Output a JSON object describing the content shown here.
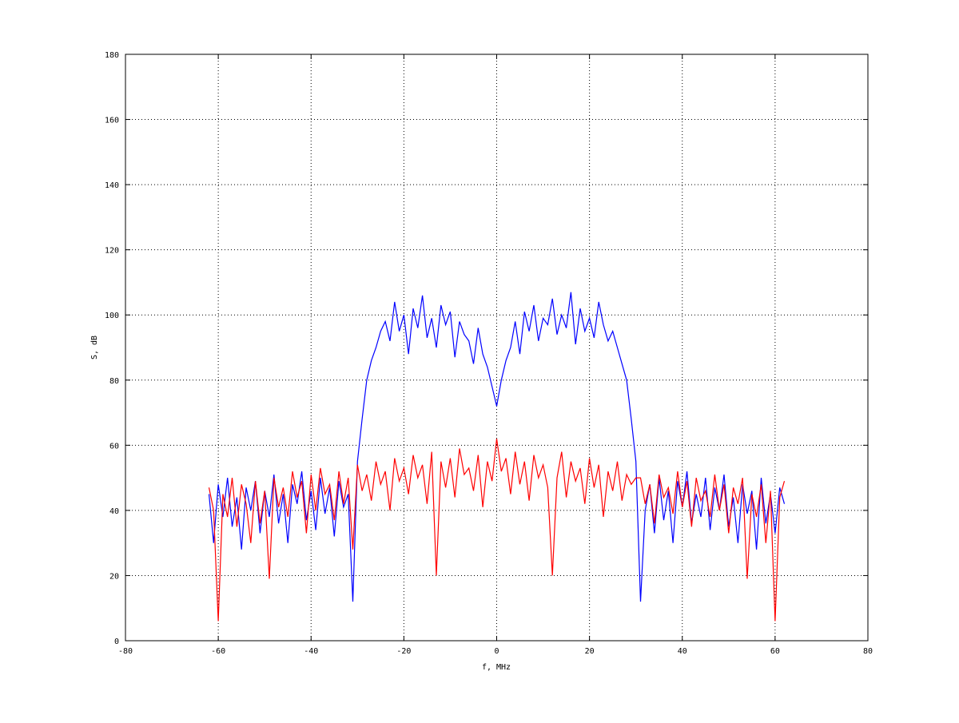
{
  "chart_data": {
    "type": "line",
    "title": "",
    "xlabel": "f, MHz",
    "ylabel": "S, dB",
    "xlim": [
      -80,
      80
    ],
    "ylim": [
      0,
      180
    ],
    "xticks": [
      -80,
      -60,
      -40,
      -20,
      0,
      20,
      40,
      60,
      80
    ],
    "yticks": [
      0,
      20,
      40,
      60,
      80,
      100,
      120,
      140,
      160,
      180
    ],
    "grid": true,
    "legend": "none",
    "x": [
      -62,
      -61,
      -60,
      -59,
      -58,
      -57,
      -56,
      -55,
      -54,
      -53,
      -52,
      -51,
      -50,
      -49,
      -48,
      -47,
      -46,
      -45,
      -44,
      -43,
      -42,
      -41,
      -40,
      -39,
      -38,
      -37,
      -36,
      -35,
      -34,
      -33,
      -32,
      -31,
      -30,
      -29,
      -28,
      -27,
      -26,
      -25,
      -24,
      -23,
      -22,
      -21,
      -20,
      -19,
      -18,
      -17,
      -16,
      -15,
      -14,
      -13,
      -12,
      -11,
      -10,
      -9,
      -8,
      -7,
      -6,
      -5,
      -4,
      -3,
      -2,
      -1,
      0,
      1,
      2,
      3,
      4,
      5,
      6,
      7,
      8,
      9,
      10,
      11,
      12,
      13,
      14,
      15,
      16,
      17,
      18,
      19,
      20,
      21,
      22,
      23,
      24,
      25,
      26,
      27,
      28,
      29,
      30,
      31,
      32,
      33,
      34,
      35,
      36,
      37,
      38,
      39,
      40,
      41,
      42,
      43,
      44,
      45,
      46,
      47,
      48,
      49,
      50,
      51,
      52,
      53,
      54,
      55,
      56,
      57,
      58,
      59,
      60,
      61,
      62
    ],
    "series": [
      {
        "color": "#0000ff",
        "values": [
          45,
          30,
          48,
          38,
          50,
          35,
          44,
          28,
          47,
          40,
          49,
          33,
          46,
          38,
          51,
          36,
          45,
          30,
          48,
          42,
          52,
          37,
          46,
          34,
          50,
          39,
          47,
          32,
          49,
          41,
          45,
          12,
          55,
          68,
          80,
          86,
          90,
          95,
          98,
          92,
          104,
          95,
          100,
          88,
          102,
          96,
          106,
          93,
          99,
          90,
          103,
          97,
          101,
          87,
          98,
          94,
          92,
          85,
          96,
          88,
          84,
          78,
          72,
          80,
          86,
          90,
          98,
          88,
          101,
          95,
          103,
          92,
          99,
          97,
          105,
          94,
          100,
          96,
          107,
          91,
          102,
          95,
          99,
          93,
          104,
          97,
          92,
          95,
          90,
          85,
          80,
          68,
          55,
          12,
          40,
          48,
          33,
          50,
          37,
          46,
          30,
          49,
          41,
          52,
          36,
          45,
          38,
          50,
          34,
          47,
          40,
          51,
          35,
          44,
          30,
          48,
          39,
          46,
          28,
          50,
          36,
          45,
          33,
          47,
          42
        ]
      },
      {
        "color": "#ff0000",
        "values": [
          47,
          40,
          6,
          45,
          38,
          50,
          35,
          48,
          42,
          30,
          49,
          36,
          46,
          19,
          50,
          41,
          47,
          38,
          52,
          44,
          49,
          33,
          51,
          40,
          53,
          45,
          48,
          37,
          52,
          42,
          50,
          28,
          54,
          46,
          51,
          43,
          55,
          48,
          52,
          40,
          56,
          49,
          53,
          45,
          57,
          50,
          54,
          42,
          58,
          20,
          55,
          47,
          56,
          44,
          59,
          51,
          53,
          46,
          57,
          41,
          55,
          49,
          62,
          52,
          56,
          45,
          58,
          48,
          55,
          43,
          57,
          50,
          54,
          47,
          20,
          50,
          58,
          44,
          55,
          49,
          53,
          42,
          56,
          47,
          54,
          38,
          52,
          46,
          55,
          43,
          51,
          48,
          50,
          50,
          42,
          48,
          36,
          51,
          44,
          47,
          39,
          52,
          41,
          49,
          35,
          50,
          43,
          46,
          38,
          51,
          40,
          48,
          33,
          47,
          42,
          50,
          19,
          45,
          38,
          48,
          30,
          46,
          6,
          44,
          49
        ]
      }
    ]
  }
}
